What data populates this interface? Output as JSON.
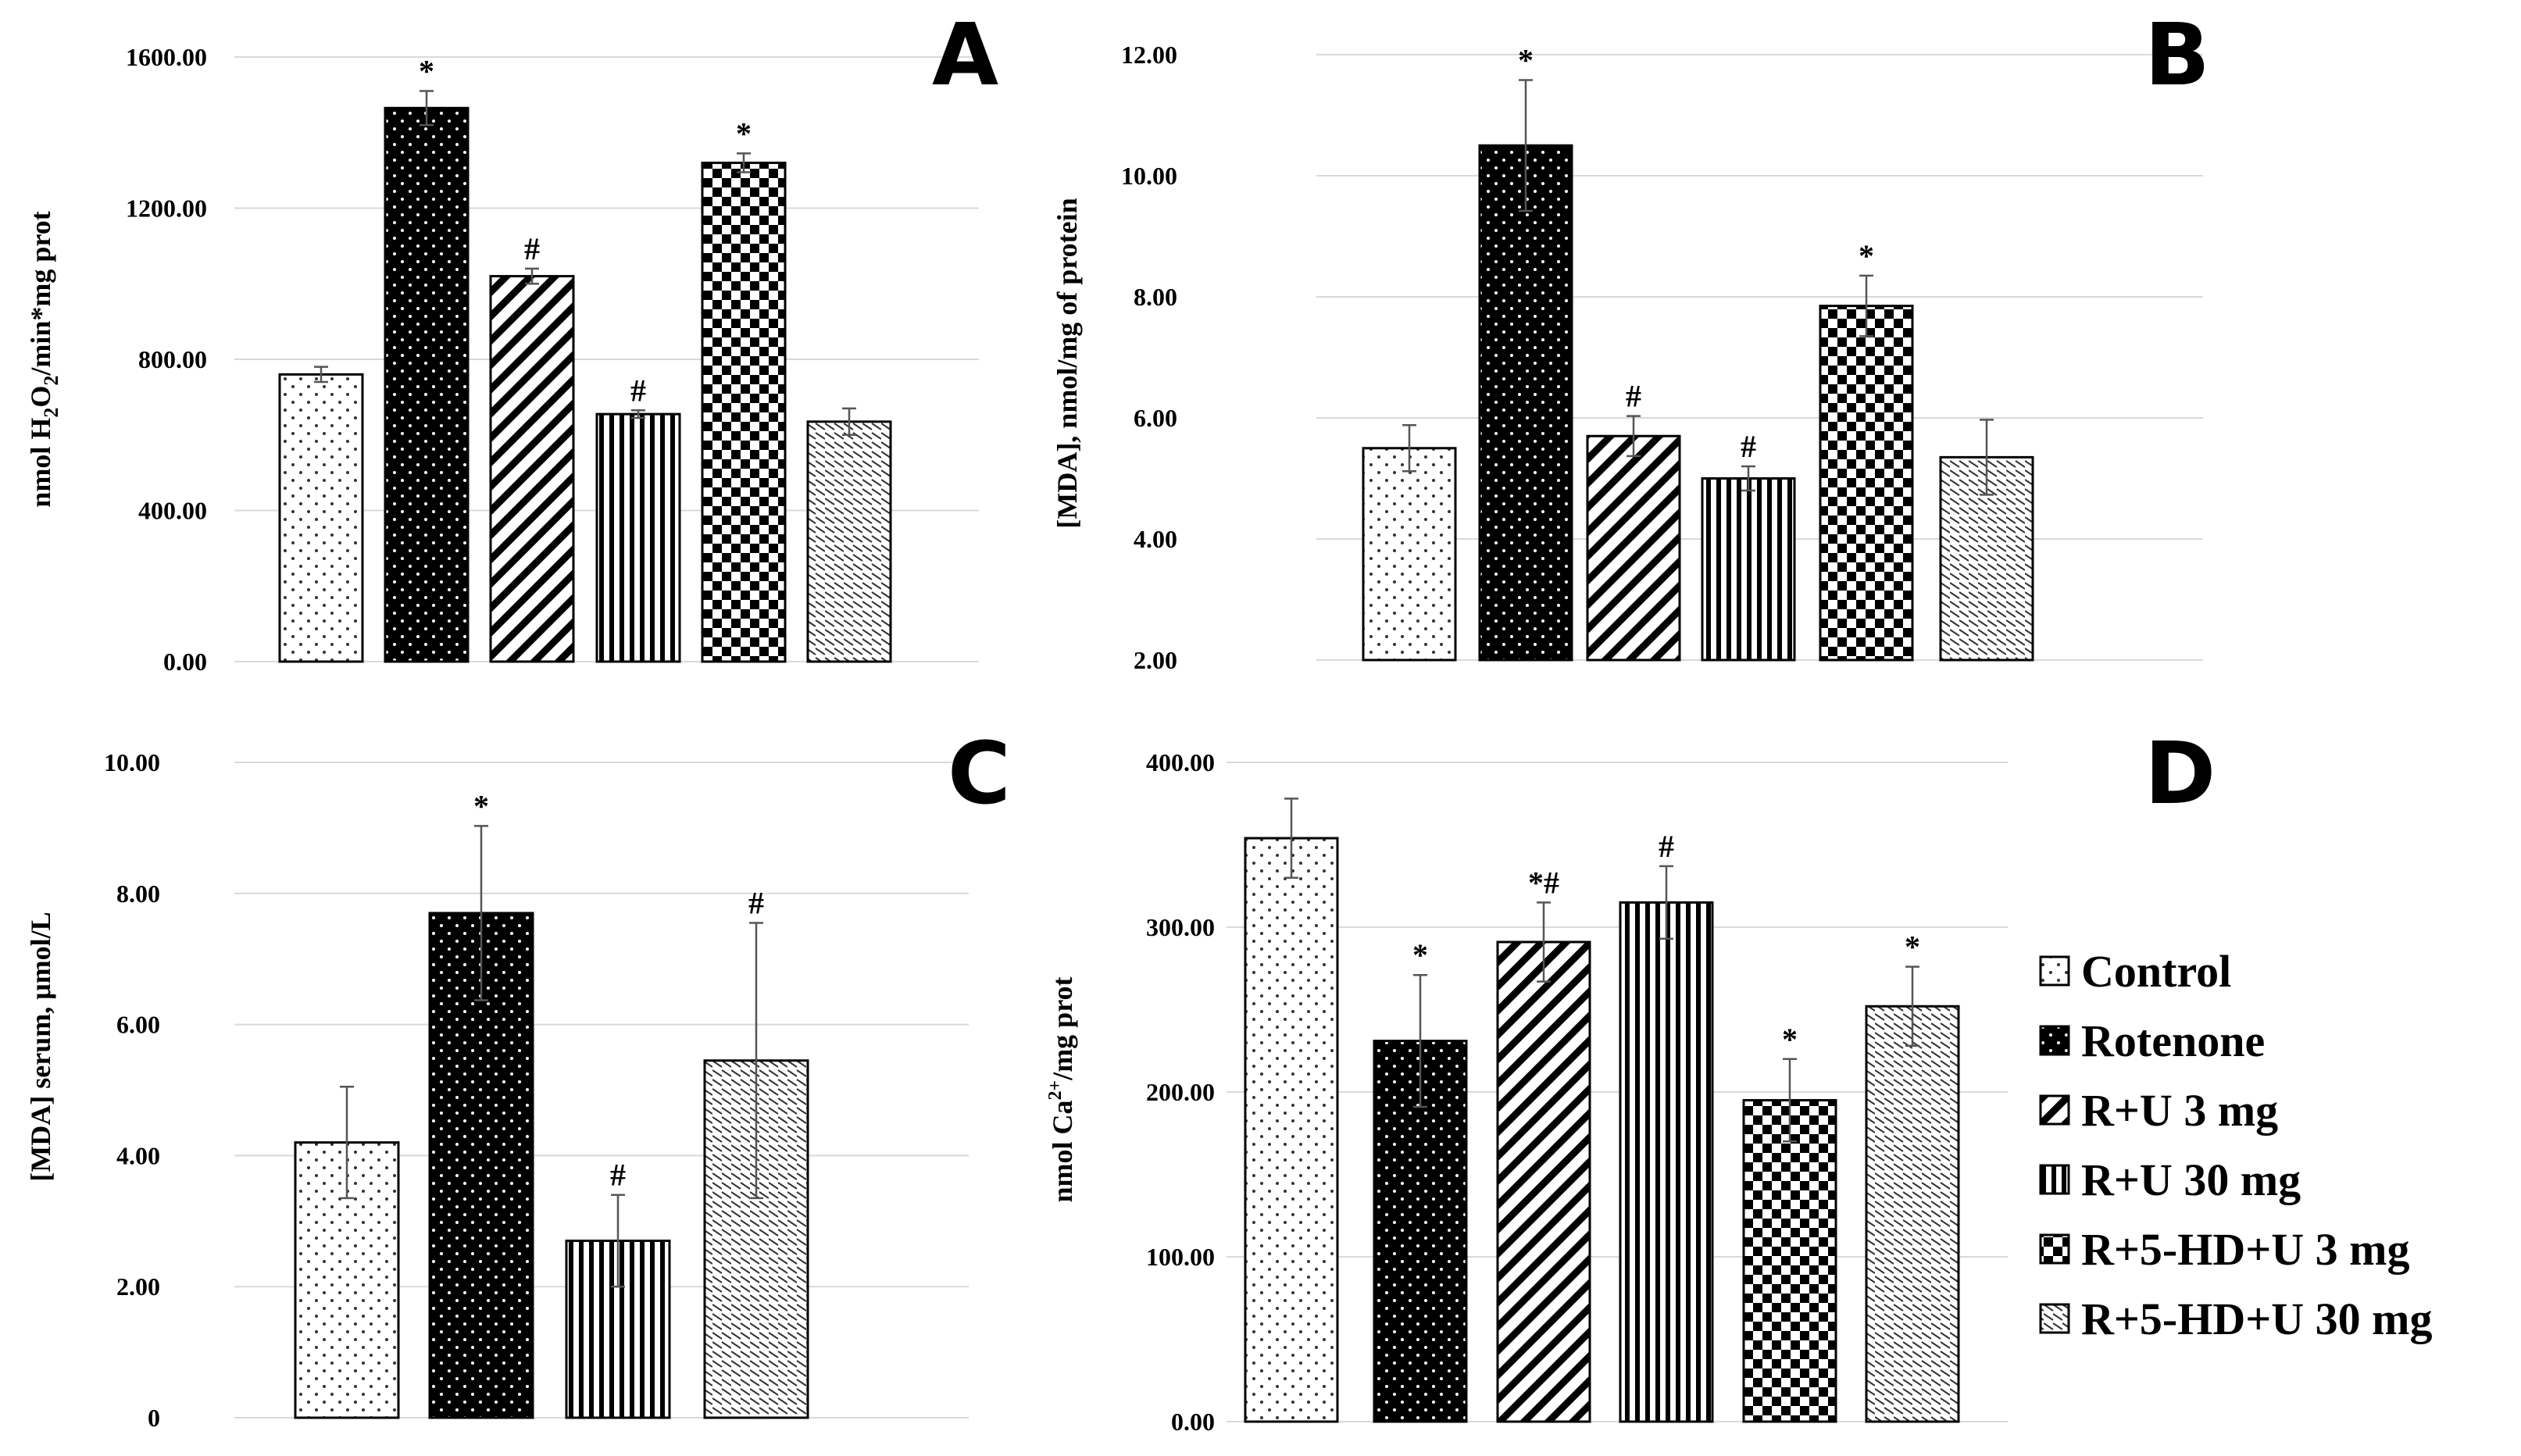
{
  "chart_data": [
    {
      "panel": "A",
      "type": "bar",
      "ylabel": "nmol H2O2/min*mg prot",
      "ylabel_parts": {
        "prefix": "nmol H",
        "sub1": "2",
        "mid": "O",
        "sub2": "2",
        "suffix": "/min*mg prot"
      },
      "ylim": [
        0,
        1600
      ],
      "yticks": [
        0,
        400,
        800,
        1200,
        1600
      ],
      "ytick_labels": [
        "0.00",
        "400.00",
        "800.00",
        "1200.00",
        "1600.00"
      ],
      "categories": [
        "Control",
        "Rotenone",
        "R+U 3 mg",
        "R+U 30 mg",
        "R+5-HD+U 3 mg",
        "R+5-HD+U 30 mg"
      ],
      "values": [
        760,
        1465,
        1020,
        655,
        1320,
        635
      ],
      "errors": [
        20,
        45,
        20,
        10,
        25,
        35
      ],
      "markers": [
        "",
        "*",
        "#",
        "#",
        "*",
        ""
      ]
    },
    {
      "panel": "B",
      "type": "bar",
      "ylabel": "[MDA], nmol/mg of protein",
      "ylim": [
        2,
        12
      ],
      "yticks": [
        2,
        4,
        6,
        8,
        10,
        12
      ],
      "ytick_labels": [
        "2.00",
        "4.00",
        "6.00",
        "8.00",
        "10.00",
        "12.00"
      ],
      "categories": [
        "Control",
        "Rotenone",
        "R+U 3 mg",
        "R+U 30 mg",
        "R+5-HD+U 3 mg",
        "R+5-HD+U 30 mg"
      ],
      "values": [
        5.5,
        10.5,
        5.7,
        5.0,
        7.85,
        5.35
      ],
      "errors": [
        0.38,
        1.08,
        0.33,
        0.2,
        0.5,
        0.62
      ],
      "markers": [
        "",
        "*",
        "#",
        "#",
        "*",
        ""
      ]
    },
    {
      "panel": "C",
      "type": "bar",
      "ylabel": "[MDA] serum, μmol/L",
      "ylim": [
        0,
        10
      ],
      "yticks": [
        0,
        2,
        4,
        6,
        8,
        10
      ],
      "ytick_labels": [
        "0",
        "2.00",
        "4.00",
        "6.00",
        "8.00",
        "10.00"
      ],
      "categories": [
        "Control",
        "Rotenone",
        "R+U 30 mg",
        "R+5-HD+U 30 mg"
      ],
      "values": [
        4.2,
        7.7,
        2.7,
        5.45
      ],
      "errors": [
        0.85,
        1.33,
        0.7,
        2.1
      ],
      "markers": [
        "",
        "*",
        "#",
        "#"
      ]
    },
    {
      "panel": "D",
      "type": "bar",
      "ylabel": "nmol Ca2+/mg prot",
      "ylabel_parts": {
        "prefix": "nmol Ca",
        "sup": "2+",
        "suffix": "/mg prot"
      },
      "ylim": [
        0,
        400
      ],
      "yticks": [
        0,
        100,
        200,
        300,
        400
      ],
      "ytick_labels": [
        "0.00",
        "100.00",
        "200.00",
        "300.00",
        "400.00"
      ],
      "categories": [
        "Control",
        "Rotenone",
        "R+U 3 mg",
        "R+U 30 mg",
        "R+5-HD+U 3 mg",
        "R+5-HD+U 30 mg"
      ],
      "values": [
        354,
        231,
        291,
        315,
        195,
        252
      ],
      "errors": [
        24,
        40,
        24,
        22,
        25,
        24
      ],
      "markers": [
        "",
        "*",
        "*#",
        "#",
        "*",
        "*"
      ]
    }
  ],
  "legend": {
    "items": [
      "Control",
      "Rotenone",
      "R+U 3 mg",
      "R+U 30 mg",
      "R+5-HD+U 3 mg",
      "R+5-HD+U 30 mg"
    ]
  }
}
